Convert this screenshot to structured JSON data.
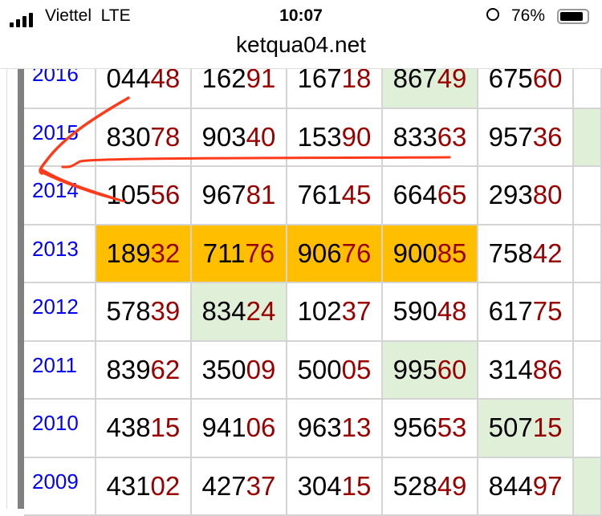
{
  "status_bar": {
    "carrier": "Viettel",
    "network": "LTE",
    "time": "10:07",
    "battery": "76%",
    "battery_level": 0.76
  },
  "browser": {
    "url": "ketqua04.net"
  },
  "colors": {
    "year": "#0000ff",
    "suffix": "#9b0000",
    "highlight_orange": "#ffbf00",
    "highlight_green": "#dfefd8",
    "annotation": "#ff3a1a"
  },
  "rows": [
    {
      "year": "2016",
      "cells": [
        {
          "p": "044",
          "s": "48",
          "bg": ""
        },
        {
          "p": "162",
          "s": "91",
          "bg": ""
        },
        {
          "p": "167",
          "s": "18",
          "bg": ""
        },
        {
          "p": "867",
          "s": "49",
          "bg": "green"
        },
        {
          "p": "675",
          "s": "60",
          "bg": ""
        }
      ],
      "extra_bg": ""
    },
    {
      "year": "2015",
      "cells": [
        {
          "p": "830",
          "s": "78",
          "bg": ""
        },
        {
          "p": "903",
          "s": "40",
          "bg": ""
        },
        {
          "p": "153",
          "s": "90",
          "bg": ""
        },
        {
          "p": "833",
          "s": "63",
          "bg": ""
        },
        {
          "p": "957",
          "s": "36",
          "bg": ""
        }
      ],
      "extra_bg": "green"
    },
    {
      "year": "2014",
      "cells": [
        {
          "p": "105",
          "s": "56",
          "bg": ""
        },
        {
          "p": "967",
          "s": "81",
          "bg": ""
        },
        {
          "p": "761",
          "s": "45",
          "bg": ""
        },
        {
          "p": "664",
          "s": "65",
          "bg": ""
        },
        {
          "p": "293",
          "s": "80",
          "bg": ""
        }
      ],
      "extra_bg": ""
    },
    {
      "year": "2013",
      "cells": [
        {
          "p": "189",
          "s": "32",
          "bg": "orange"
        },
        {
          "p": "711",
          "s": "76",
          "bg": "orange"
        },
        {
          "p": "906",
          "s": "76",
          "bg": "orange"
        },
        {
          "p": "900",
          "s": "85",
          "bg": "orange"
        },
        {
          "p": "758",
          "s": "42",
          "bg": ""
        }
      ],
      "extra_bg": ""
    },
    {
      "year": "2012",
      "cells": [
        {
          "p": "578",
          "s": "39",
          "bg": ""
        },
        {
          "p": "834",
          "s": "24",
          "bg": "green"
        },
        {
          "p": "102",
          "s": "37",
          "bg": ""
        },
        {
          "p": "590",
          "s": "48",
          "bg": ""
        },
        {
          "p": "617",
          "s": "75",
          "bg": ""
        }
      ],
      "extra_bg": ""
    },
    {
      "year": "2011",
      "cells": [
        {
          "p": "839",
          "s": "62",
          "bg": ""
        },
        {
          "p": "350",
          "s": "09",
          "bg": ""
        },
        {
          "p": "500",
          "s": "05",
          "bg": ""
        },
        {
          "p": "995",
          "s": "60",
          "bg": "green"
        },
        {
          "p": "314",
          "s": "86",
          "bg": ""
        }
      ],
      "extra_bg": ""
    },
    {
      "year": "2010",
      "cells": [
        {
          "p": "438",
          "s": "15",
          "bg": ""
        },
        {
          "p": "941",
          "s": "06",
          "bg": ""
        },
        {
          "p": "963",
          "s": "13",
          "bg": ""
        },
        {
          "p": "956",
          "s": "53",
          "bg": ""
        },
        {
          "p": "507",
          "s": "15",
          "bg": "green"
        }
      ],
      "extra_bg": ""
    },
    {
      "year": "2009",
      "cells": [
        {
          "p": "431",
          "s": "02",
          "bg": ""
        },
        {
          "p": "427",
          "s": "37",
          "bg": ""
        },
        {
          "p": "304",
          "s": "15",
          "bg": ""
        },
        {
          "p": "528",
          "s": "49",
          "bg": ""
        },
        {
          "p": "844",
          "s": "97",
          "bg": ""
        }
      ],
      "extra_bg": "green"
    }
  ]
}
